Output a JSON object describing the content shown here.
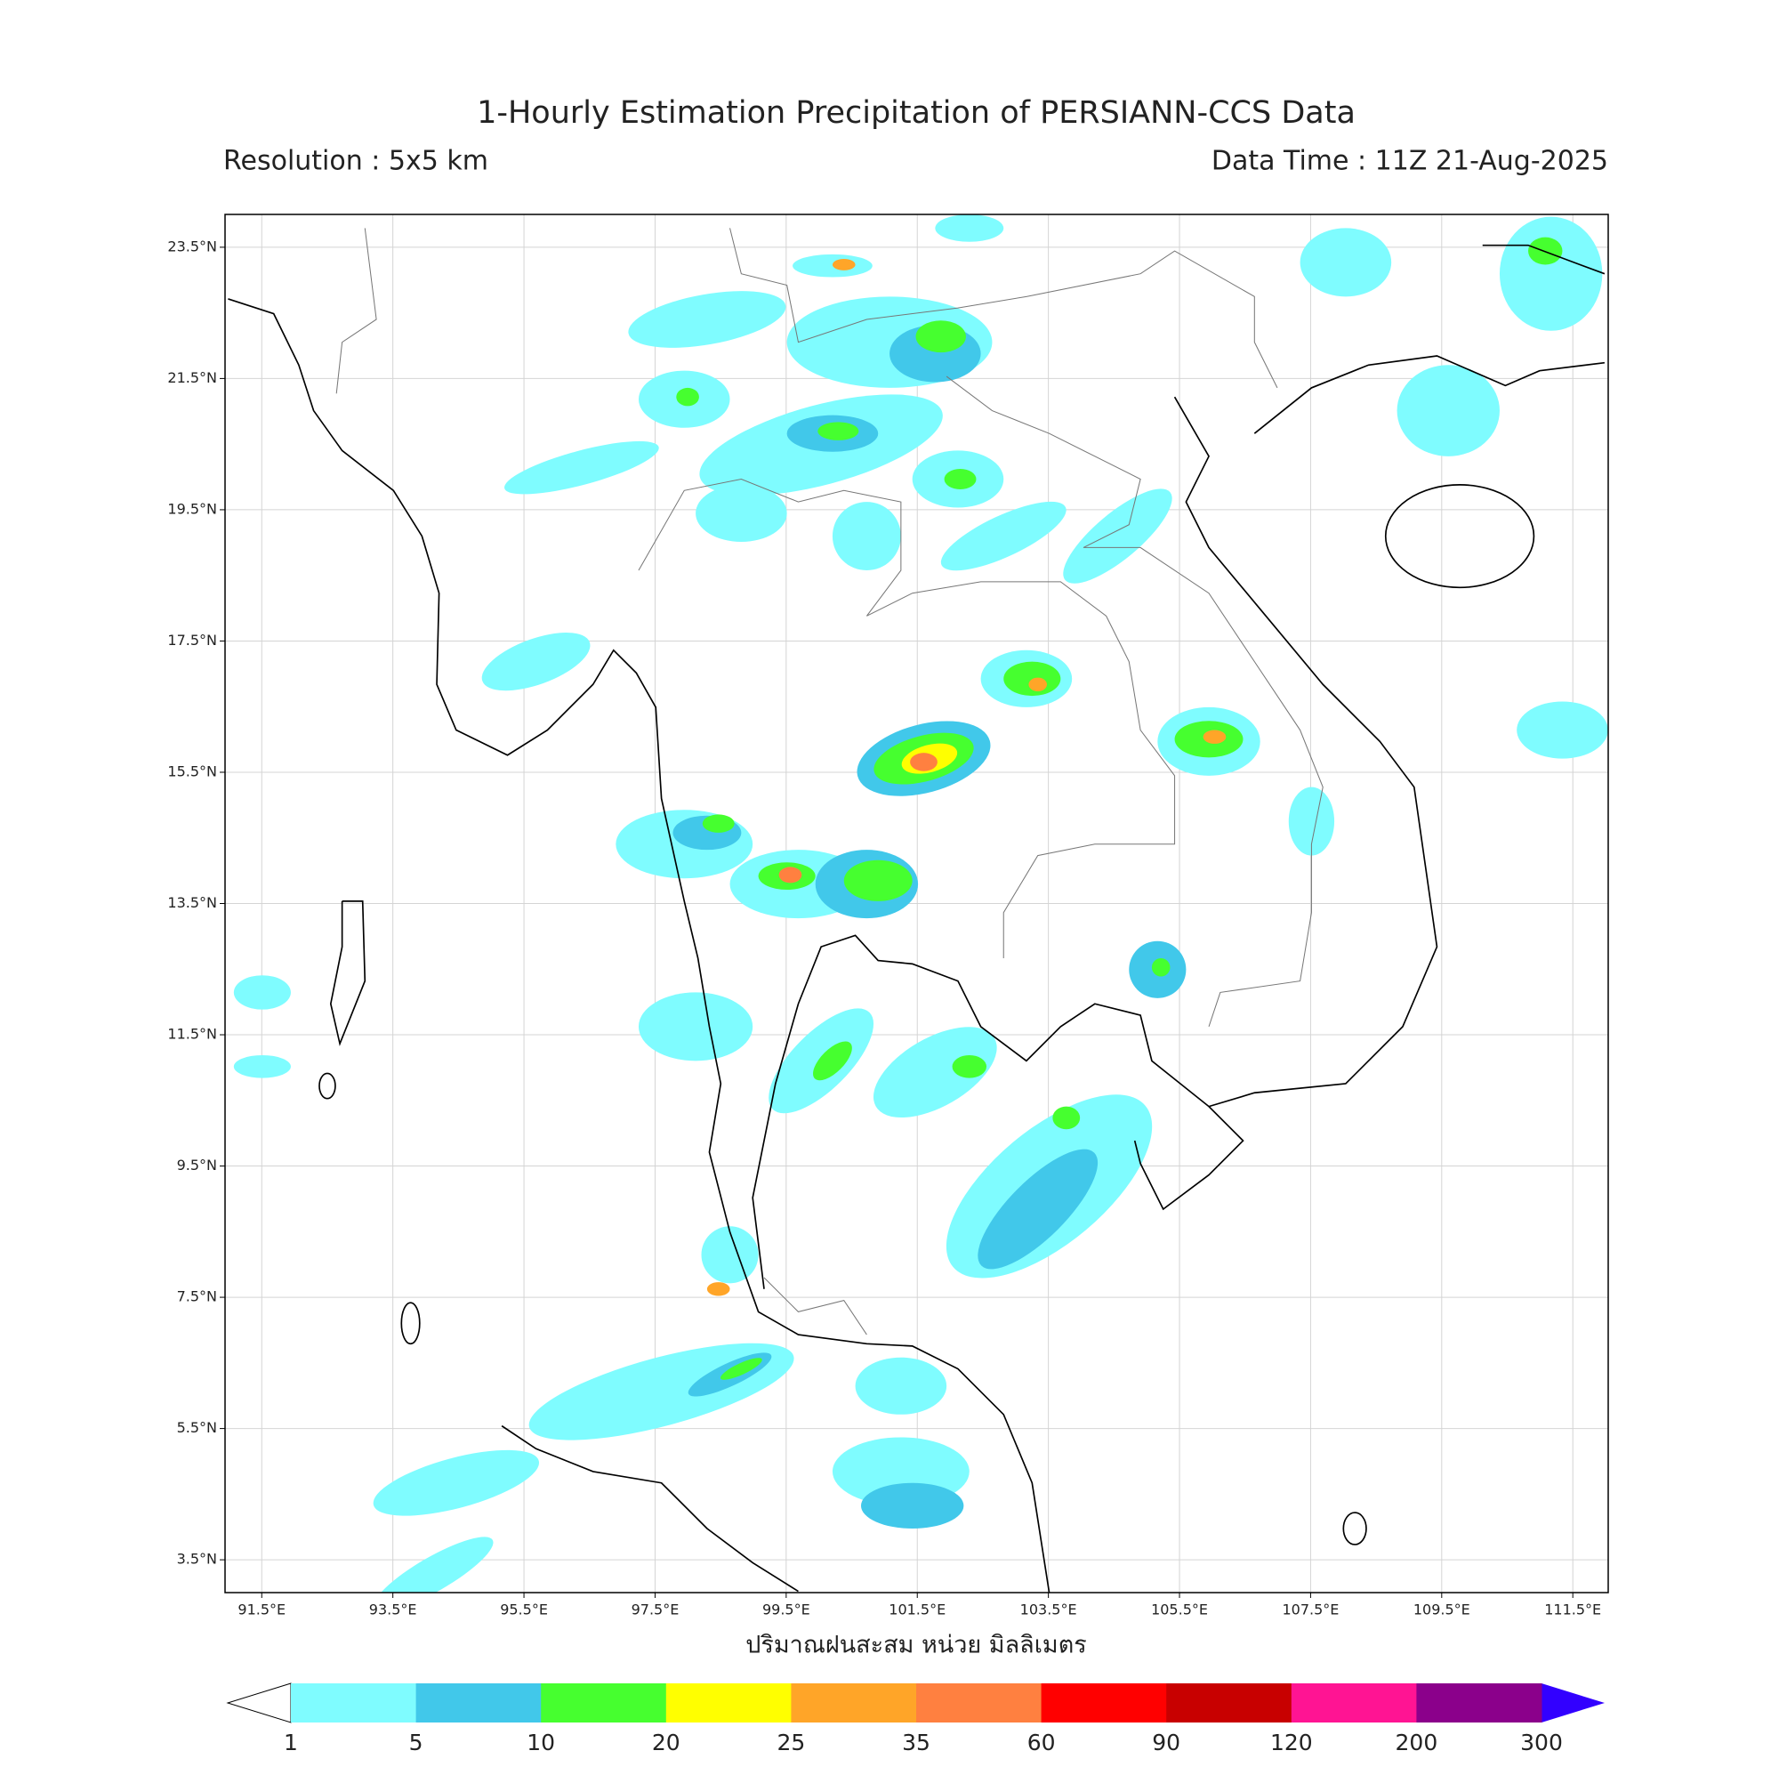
{
  "title": "1-Hourly Estimation Precipitation of PERSIANN-CCS Data",
  "resolution": "Resolution : 5x5 km",
  "data_time": "Data Time : 11Z 21-Aug-2025",
  "x_axis_label": "ปริมาณฝนสะสม หน่วย มิลลิเมตร",
  "lon_range": [
    90.94,
    112.04
  ],
  "lat_range": [
    3.0,
    24.0
  ],
  "lon_ticks": [
    {
      "value": 91.5,
      "label": "91.5°E"
    },
    {
      "value": 93.5,
      "label": "93.5°E"
    },
    {
      "value": 95.5,
      "label": "95.5°E"
    },
    {
      "value": 97.5,
      "label": "97.5°E"
    },
    {
      "value": 99.5,
      "label": "99.5°E"
    },
    {
      "value": 101.5,
      "label": "101.5°E"
    },
    {
      "value": 103.5,
      "label": "103.5°E"
    },
    {
      "value": 105.5,
      "label": "105.5°E"
    },
    {
      "value": 107.5,
      "label": "107.5°E"
    },
    {
      "value": 109.5,
      "label": "109.5°E"
    },
    {
      "value": 111.5,
      "label": "111.5°E"
    }
  ],
  "lat_ticks": [
    {
      "value": 23.5,
      "label": "23.5°N"
    },
    {
      "value": 21.5,
      "label": "21.5°N"
    },
    {
      "value": 19.5,
      "label": "19.5°N"
    },
    {
      "value": 17.5,
      "label": "17.5°N"
    },
    {
      "value": 15.5,
      "label": "15.5°N"
    },
    {
      "value": 13.5,
      "label": "13.5°N"
    },
    {
      "value": 11.5,
      "label": "11.5°N"
    },
    {
      "value": 9.5,
      "label": "9.5°N"
    },
    {
      "value": 7.5,
      "label": "7.5°N"
    },
    {
      "value": 5.5,
      "label": "5.5°N"
    },
    {
      "value": 3.5,
      "label": "3.5°N"
    }
  ],
  "colorbar": {
    "levels": [
      1,
      5,
      10,
      20,
      25,
      35,
      60,
      90,
      120,
      200,
      300
    ],
    "colors": [
      "#7ffcff",
      "#41c8ea",
      "#46ff2f",
      "#ffff00",
      "#ffa528",
      "#ff8040",
      "#ff0000",
      "#c80000",
      "#ff1493",
      "#8b008b"
    ],
    "under_color": "#ffffff",
    "over_color": "#3200ff"
  }
}
